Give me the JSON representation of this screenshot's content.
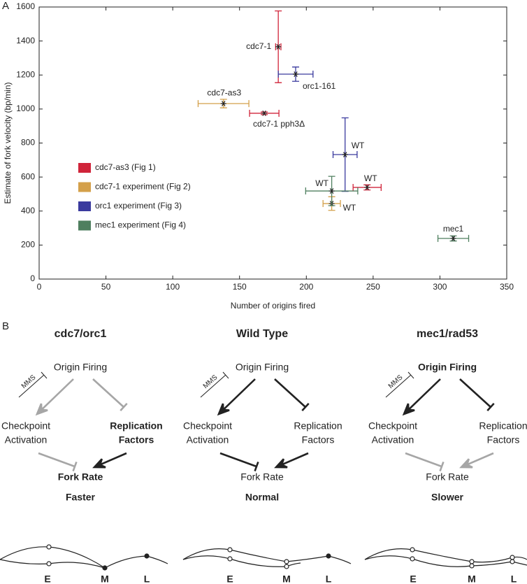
{
  "panel_labels": [
    "A",
    "B"
  ],
  "chart_data": {
    "type": "scatter",
    "x_label": "Number of origins fired",
    "y_label": "Estimate of fork velocity (bp/min)",
    "xlim": [
      0,
      350
    ],
    "ylim": [
      0,
      1600
    ],
    "xticks": [
      0,
      50,
      100,
      150,
      200,
      250,
      300,
      350
    ],
    "yticks": [
      0,
      200,
      400,
      600,
      800,
      1000,
      1200,
      1400,
      1600
    ],
    "series": [
      {
        "name": "cdc7-as3 (Fig 1)",
        "color": "#d0243a",
        "x": [
          179,
          168.5,
          245.5
        ],
        "values": [
          1366,
          975,
          539
        ],
        "xerr": [
          2,
          11,
          10.5
        ],
        "yerr": [
          211,
          8,
          15
        ],
        "point_labels": [
          "cdc7-1",
          "cdc7-1 pph3Δ",
          "WT"
        ]
      },
      {
        "name": "cdc7-1 experiment (Fig 2)",
        "color": "#d4a04a",
        "x": [
          138,
          219
        ],
        "values": [
          1032,
          444
        ],
        "xerr": [
          19,
          6.5
        ],
        "yerr": [
          25,
          40
        ],
        "point_labels": [
          "cdc7-as3",
          "WT"
        ]
      },
      {
        "name": "orc1 experiment (Fig 3)",
        "color": "#3a3a9e",
        "x": [
          192,
          229
        ],
        "values": [
          1205,
          732
        ],
        "xerr": [
          13,
          9
        ],
        "yerr": [
          42,
          216
        ],
        "point_labels": [
          "orc1-161",
          "WT"
        ]
      },
      {
        "name": "mec1 experiment (Fig 4)",
        "color": "#4f7f5f",
        "x": [
          219,
          310
        ],
        "values": [
          518,
          239
        ],
        "xerr": [
          19.5,
          11.5
        ],
        "yerr": [
          86,
          15
        ],
        "point_labels": [
          "WT",
          "mec1"
        ]
      }
    ]
  },
  "diagrams": [
    {
      "title": "cdc7/orc1",
      "origin": "Origin Firing",
      "treatment": "MMS",
      "checkpoint": [
        "Checkpoint",
        "Activation"
      ],
      "replication": [
        "Replication",
        "Factors"
      ],
      "fork_rate": "Fork Rate",
      "outcome": "Faster"
    },
    {
      "title": "Wild Type",
      "origin": "Origin Firing",
      "treatment": "MMS",
      "checkpoint": [
        "Checkpoint",
        "Activation"
      ],
      "replication": [
        "Replication",
        "Factors"
      ],
      "fork_rate": "Fork Rate",
      "outcome": "Normal"
    },
    {
      "title": "mec1/rad53",
      "origin": "Origin Firing",
      "treatment": "MMS",
      "checkpoint": [
        "Checkpoint",
        "Activation"
      ],
      "replication": [
        "Replication",
        "Factors"
      ],
      "fork_rate": "Fork Rate",
      "outcome": "Slower"
    }
  ],
  "timing_labels": [
    "E",
    "M",
    "L"
  ]
}
